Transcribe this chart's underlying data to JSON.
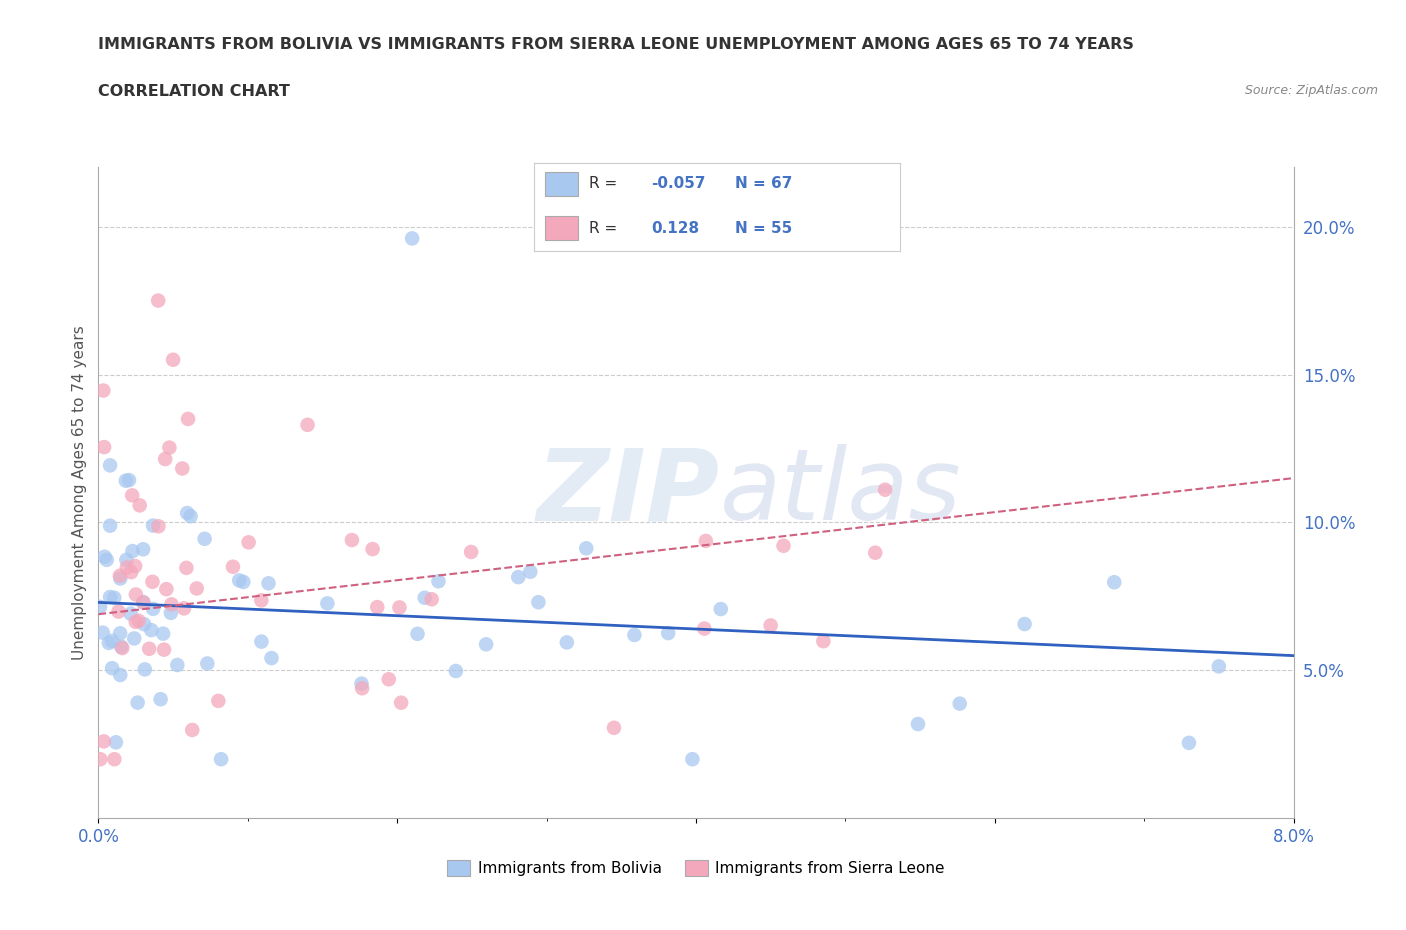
{
  "title_line1": "IMMIGRANTS FROM BOLIVIA VS IMMIGRANTS FROM SIERRA LEONE UNEMPLOYMENT AMONG AGES 65 TO 74 YEARS",
  "title_line2": "CORRELATION CHART",
  "source_text": "Source: ZipAtlas.com",
  "ylabel": "Unemployment Among Ages 65 to 74 years",
  "xlim": [
    0.0,
    0.08
  ],
  "ylim": [
    0.0,
    0.22
  ],
  "right_yticks": [
    0.05,
    0.1,
    0.15,
    0.2
  ],
  "right_yticklabels": [
    "5.0%",
    "10.0%",
    "15.0%",
    "20.0%"
  ],
  "xticks": [
    0.0,
    0.08
  ],
  "xticklabels": [
    "0.0%",
    "8.0%"
  ],
  "bolivia_color": "#A8C8F0",
  "sierra_leone_color": "#F4A8BC",
  "bolivia_line_color": "#3060C0",
  "sierra_leone_line_color": "#D06080",
  "bolivia_R": -0.057,
  "bolivia_N": 67,
  "sierra_leone_R": 0.128,
  "sierra_leone_N": 55,
  "bolivia_label": "Immigrants from Bolivia",
  "sierra_leone_label": "Immigrants from Sierra Leone",
  "watermark_zip": "ZIP",
  "watermark_atlas": "atlas",
  "grid_color": "#CCCCCC",
  "background_color": "#FFFFFF",
  "bolivia_trend_y0": 0.073,
  "bolivia_trend_y1": 0.055,
  "sierra_leone_trend_y0": 0.069,
  "sierra_leone_trend_y1": 0.115
}
